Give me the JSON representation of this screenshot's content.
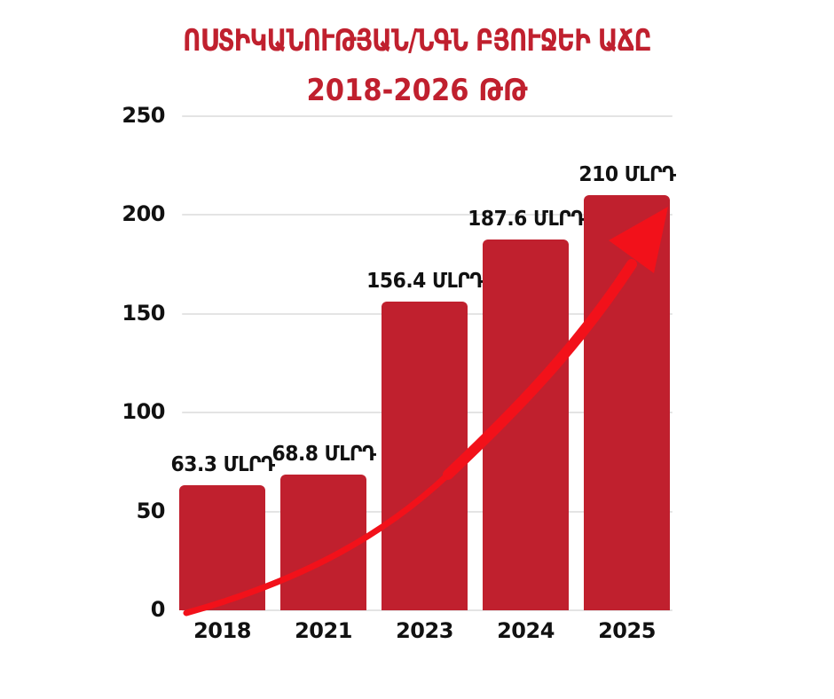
{
  "title": {
    "line1": "ՈՍՏԻԿԱՆՈՒԹՅԱՆ/ՆԳՆ ԲՅՈՒՋԵԻ ԱՃԸ",
    "line2": "2018-2026 ԹԹ"
  },
  "chart_data": {
    "type": "bar",
    "title": "ՈՍՏԻԿԱՆՈՒԹՅԱՆ/ՆԳՆ ԲՅՈՒՋԵԻ ԱՃԸ 2018-2026 ԹԹ",
    "categories": [
      "2018",
      "2021",
      "2023",
      "2024",
      "2025"
    ],
    "values": [
      63.3,
      68.8,
      156.4,
      187.6,
      210
    ],
    "bar_labels": [
      "63.3 ՄԼՐԴ",
      "68.8 ՄԼՐԴ",
      "156.4 ՄԼՐԴ",
      "187.6 ՄԼՐԴ",
      "210 ՄԼՐԴ"
    ],
    "unit": "ՄԼՐԴ",
    "y_ticks": [
      0,
      50,
      100,
      150,
      200,
      250
    ],
    "ylim": [
      0,
      250
    ],
    "xlabel": "",
    "ylabel": "",
    "grid": true,
    "legend": false,
    "annotations": [
      "rising-trend-arrow"
    ],
    "colors": {
      "bar": "#C0202E",
      "arrow": "#F2111A",
      "title": "#C0202E",
      "axis_text": "#111111",
      "gridline": "#E4E4E4",
      "background": "#FFFFFF"
    }
  }
}
